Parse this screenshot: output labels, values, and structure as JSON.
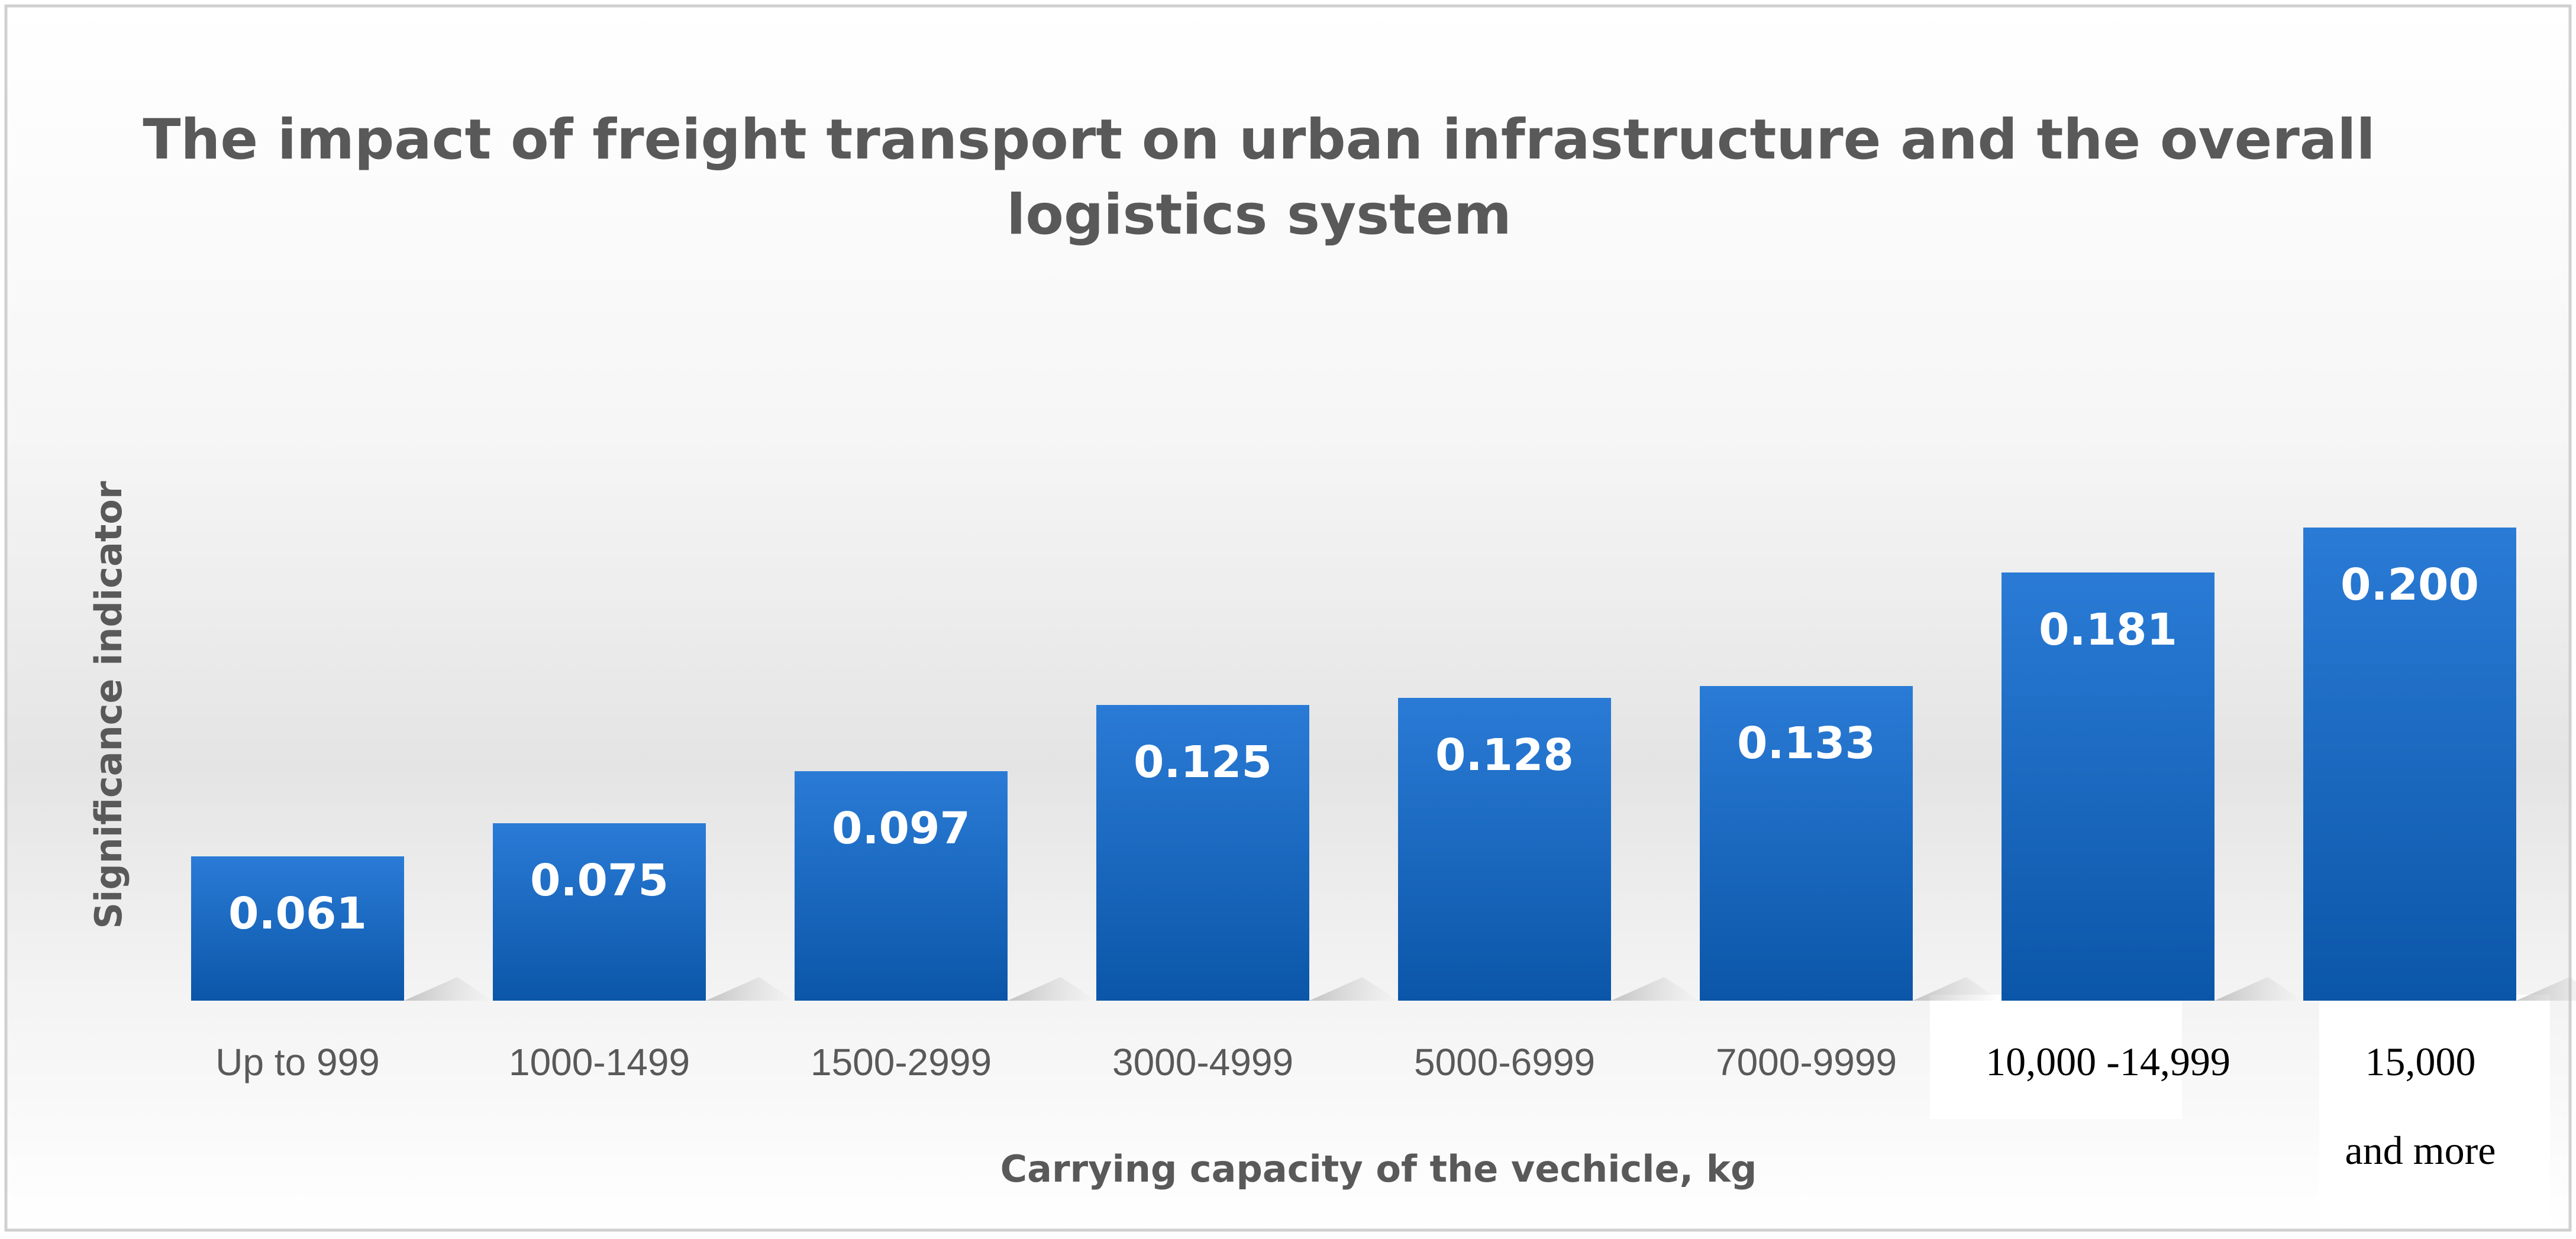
{
  "chart_data": {
    "type": "bar",
    "title_lines": [
      "The impact of freight transport on urban infrastructure and the overall",
      "logistics system"
    ],
    "ylabel": "Significance indicator",
    "xlabel": "Carrying capacity of the vechicle, kg",
    "categories": [
      {
        "lines": [
          "Up to 999"
        ]
      },
      {
        "lines": [
          "1000-1499"
        ]
      },
      {
        "lines": [
          "1500-2999"
        ]
      },
      {
        "lines": [
          "3000-4999"
        ]
      },
      {
        "lines": [
          "5000-6999"
        ]
      },
      {
        "lines": [
          "7000-9999"
        ]
      },
      {
        "lines": [
          "10,000 -14,999"
        ]
      },
      {
        "lines": [
          "15,000",
          "and more"
        ]
      }
    ],
    "values": [
      0.061,
      0.075,
      0.097,
      0.125,
      0.128,
      0.133,
      0.181,
      0.2
    ],
    "data_labels": [
      "0.061",
      "0.075",
      "0.097",
      "0.125",
      "0.128",
      "0.133",
      "0.181",
      "0.200"
    ],
    "ylim": [
      0,
      0.2
    ],
    "grid": false,
    "legend": "none",
    "colors": {
      "bar_top": "#2a7bd6",
      "bar_bottom": "#0b56a8",
      "text": "#595959",
      "data_label": "#ffffff",
      "border": "#d0d0d0",
      "background_top": "#ffffff",
      "background_mid": "#e4e4e4"
    }
  }
}
